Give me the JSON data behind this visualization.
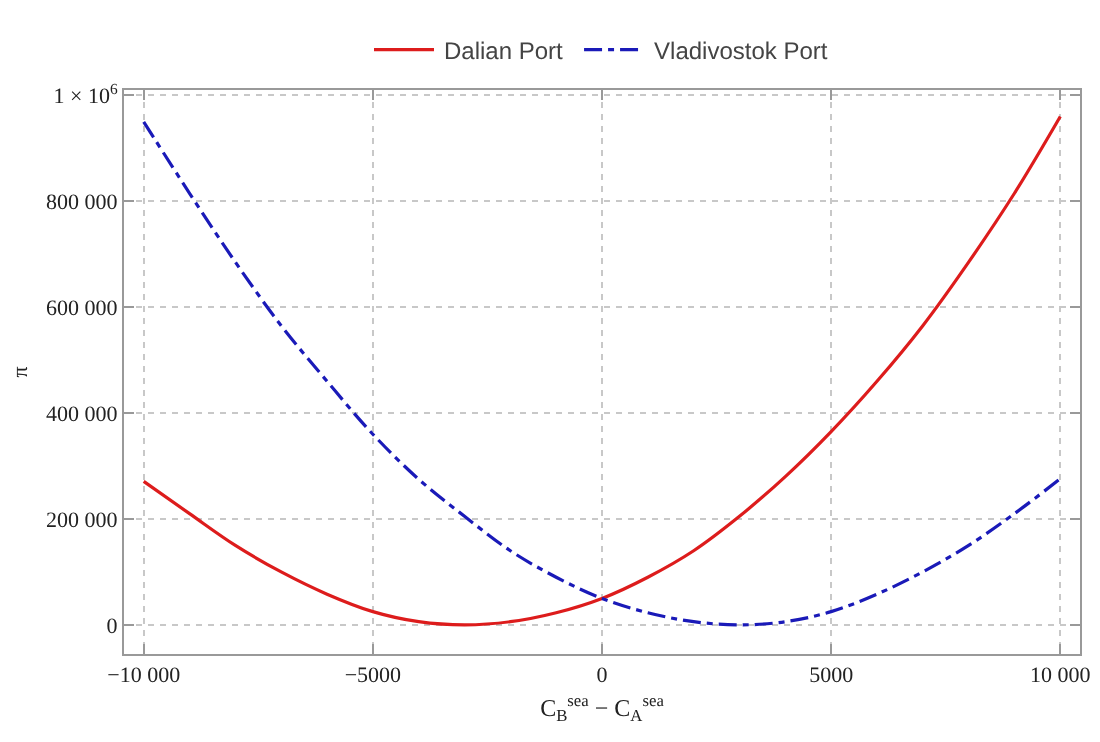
{
  "chart_data": {
    "type": "line",
    "xlabel": "C$_{B}$$^{sea}$ − C$_{A}$$^{sea}$",
    "ylabel": "π",
    "x": [
      -10000,
      -9000,
      -8000,
      -7000,
      -6000,
      -5000,
      -4000,
      -3000,
      -2000,
      -1000,
      0,
      1000,
      2000,
      3000,
      4000,
      5000,
      6000,
      7000,
      8000,
      9000,
      10000
    ],
    "series": [
      {
        "name": "Dalian Port",
        "color": "#dd1c1c",
        "line_style": "solid",
        "values": [
          271000,
          210000,
          150000,
          100000,
          58000,
          25000,
          6000,
          0,
          6000,
          23000,
          50000,
          90000,
          140000,
          205000,
          280000,
          365000,
          460000,
          565000,
          685000,
          815000,
          960000
        ]
      },
      {
        "name": "Vladivostok Port",
        "color": "#1a1ab8",
        "line_style": "dashed",
        "values": [
          950000,
          815000,
          685000,
          565000,
          460000,
          360000,
          275000,
          205000,
          140000,
          90000,
          50000,
          23000,
          6000,
          0,
          6000,
          25000,
          58000,
          100000,
          150000,
          210000,
          276000
        ]
      }
    ],
    "xlim": [
      -10430,
      10430
    ],
    "ylim": [
      -55000,
      1010000
    ],
    "xticks": [
      {
        "value": -10000,
        "label": "−10 000"
      },
      {
        "value": -5000,
        "label": "−5000"
      },
      0,
      5000,
      {
        "value": 10000,
        "label": "10 000"
      }
    ],
    "yticks": [
      0,
      {
        "value": 200000,
        "label": "200 000"
      },
      {
        "value": 400000,
        "label": "400 000"
      },
      {
        "value": 600000,
        "label": "600 000"
      },
      {
        "value": 800000,
        "label": "800 000"
      },
      {
        "value": 1000000,
        "label": "1 × 10$^{6}$"
      }
    ],
    "grid": true,
    "legend": "top",
    "marker": "none"
  }
}
